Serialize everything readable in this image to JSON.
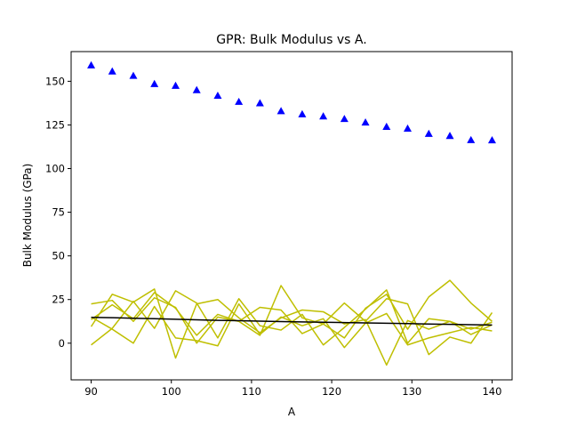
{
  "chart_data": {
    "type": "scatter",
    "title": "GPR: Bulk Modulus vs A.",
    "xlabel": "A",
    "ylabel": "Bulk Modulus (GPa)",
    "xlim": [
      87.5,
      142.5
    ],
    "ylim": [
      -21,
      167
    ],
    "xticks": [
      90,
      100,
      110,
      120,
      130,
      140
    ],
    "yticks": [
      0,
      25,
      50,
      75,
      100,
      125,
      150
    ],
    "grid": false,
    "legend": "none",
    "x": [
      90.0,
      92.63,
      95.26,
      97.89,
      100.53,
      103.16,
      105.79,
      108.42,
      111.05,
      113.68,
      116.32,
      118.95,
      121.58,
      124.21,
      126.84,
      129.47,
      132.11,
      134.74,
      137.37,
      140.0
    ],
    "series": [
      {
        "kind": "points",
        "marker": "triangle",
        "color": "#0000ff",
        "values": [
          159.2,
          155.7,
          153.2,
          148.5,
          147.5,
          145.0,
          141.8,
          138.3,
          137.5,
          133.0,
          131.2,
          130.0,
          128.5,
          126.5,
          124.0,
          123.0,
          120.0,
          118.8,
          116.4,
          116.3
        ]
      },
      {
        "kind": "line",
        "color": "#000000",
        "values": [
          14.8,
          14.6,
          14.3,
          14.0,
          13.7,
          13.4,
          13.1,
          12.9,
          12.6,
          12.4,
          12.2,
          12.0,
          11.8,
          11.6,
          11.4,
          11.2,
          11.0,
          10.8,
          10.6,
          10.4
        ]
      },
      {
        "kind": "line",
        "color": "#bfbf00",
        "values": [
          22.5,
          24.5,
          12.5,
          26.0,
          20.5,
          0.0,
          15.0,
          12.5,
          4.5,
          33.0,
          14.5,
          11.0,
          3.0,
          20.0,
          28.0,
          8.0,
          26.5,
          36.0,
          23.0,
          12.5
        ]
      },
      {
        "kind": "line",
        "color": "#bfbf00",
        "values": [
          9.5,
          28.0,
          23.5,
          31.0,
          -8.5,
          22.5,
          25.0,
          14.5,
          6.0,
          14.5,
          19.0,
          18.0,
          11.0,
          13.5,
          -12.5,
          13.0,
          8.0,
          12.5,
          8.0,
          12.0
        ]
      },
      {
        "kind": "line",
        "color": "#bfbf00",
        "values": [
          13.5,
          22.0,
          14.0,
          29.0,
          20.0,
          4.5,
          16.5,
          12.5,
          20.5,
          19.0,
          5.5,
          11.0,
          23.0,
          12.5,
          25.5,
          22.5,
          -6.5,
          3.5,
          0.0,
          17.5
        ]
      },
      {
        "kind": "line",
        "color": "#bfbf00",
        "values": [
          -1.0,
          8.5,
          24.0,
          8.5,
          30.0,
          23.0,
          3.0,
          25.5,
          10.0,
          7.5,
          16.5,
          -1.0,
          9.0,
          19.5,
          30.5,
          0.0,
          14.0,
          12.5,
          5.0,
          10.5
        ]
      },
      {
        "kind": "line",
        "color": "#bfbf00",
        "values": [
          15.0,
          8.0,
          0.0,
          21.0,
          3.0,
          1.5,
          -1.5,
          22.5,
          5.0,
          15.0,
          10.0,
          14.0,
          -2.5,
          11.5,
          17.0,
          -1.0,
          3.0,
          6.0,
          9.0,
          7.0
        ]
      }
    ]
  }
}
